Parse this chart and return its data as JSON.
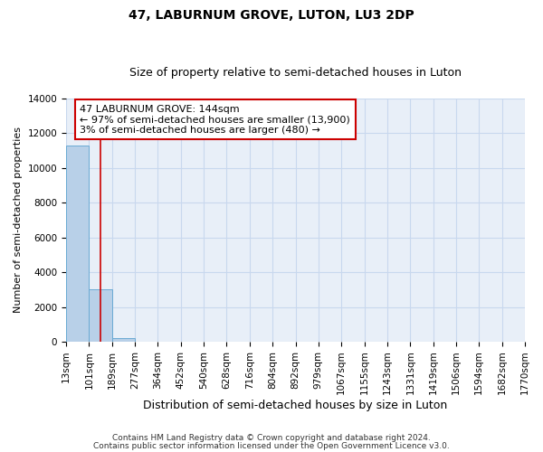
{
  "title1": "47, LABURNUM GROVE, LUTON, LU3 2DP",
  "title2": "Size of property relative to semi-detached houses in Luton",
  "xlabel": "Distribution of semi-detached houses by size in Luton",
  "ylabel": "Number of semi-detached properties",
  "annotation_title": "47 LABURNUM GROVE: 144sqm",
  "annotation_line1": "← 97% of semi-detached houses are smaller (13,900)",
  "annotation_line2": "3% of semi-detached houses are larger (480) →",
  "footer1": "Contains HM Land Registry data © Crown copyright and database right 2024.",
  "footer2": "Contains public sector information licensed under the Open Government Licence v3.0.",
  "bar_edges": [
    13,
    101,
    189,
    277,
    364,
    452,
    540,
    628,
    716,
    804,
    892,
    979,
    1067,
    1155,
    1243,
    1331,
    1419,
    1506,
    1594,
    1682,
    1770
  ],
  "bar_labels": [
    "13sqm",
    "101sqm",
    "189sqm",
    "277sqm",
    "364sqm",
    "452sqm",
    "540sqm",
    "628sqm",
    "716sqm",
    "804sqm",
    "892sqm",
    "979sqm",
    "1067sqm",
    "1155sqm",
    "1243sqm",
    "1331sqm",
    "1419sqm",
    "1506sqm",
    "1594sqm",
    "1682sqm",
    "1770sqm"
  ],
  "bar_values": [
    11300,
    3000,
    200,
    0,
    0,
    0,
    0,
    0,
    0,
    0,
    0,
    0,
    0,
    0,
    0,
    0,
    0,
    0,
    0,
    0
  ],
  "bar_color": "#b8d0e8",
  "bar_edge_color": "#6aaad4",
  "property_size": 144,
  "red_line_color": "#cc0000",
  "ylim": [
    0,
    14000
  ],
  "yticks": [
    0,
    2000,
    4000,
    6000,
    8000,
    10000,
    12000,
    14000
  ],
  "grid_color": "#c8d8ee",
  "background_color": "#e8eff8",
  "annotation_box_facecolor": "#ffffff",
  "annotation_box_edgecolor": "#cc0000",
  "title1_fontsize": 10,
  "title2_fontsize": 9,
  "xlabel_fontsize": 9,
  "ylabel_fontsize": 8,
  "tick_fontsize": 7.5,
  "annot_fontsize": 8,
  "footer_fontsize": 6.5
}
